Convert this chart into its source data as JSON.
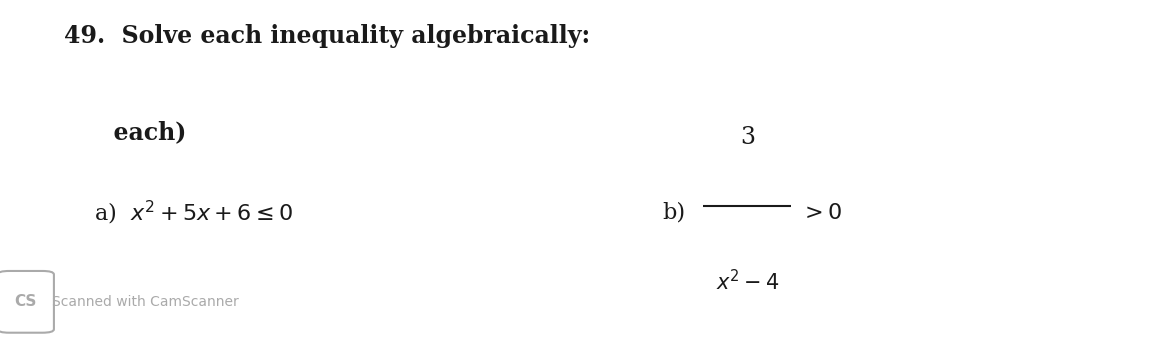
{
  "background_color": "#ffffff",
  "title_number": "49.",
  "title_text": "  Solve each inequality algebraically:",
  "subtitle_text": "      each)",
  "part_a_label": "a)",
  "part_a_expr": "$x^2+5x+6\\leq 0$",
  "part_b_label": "b)",
  "part_b_numerator": "3",
  "part_b_denominator": "$x^2-4$",
  "part_b_ineq": "$>0$",
  "footer_box_text": "CS",
  "footer_text": "Scanned with CamScanner",
  "title_fontsize": 17,
  "subtitle_fontsize": 17,
  "expr_fontsize": 16,
  "footer_fontsize": 10,
  "text_color": "#1a1a1a",
  "footer_color": "#aaaaaa"
}
